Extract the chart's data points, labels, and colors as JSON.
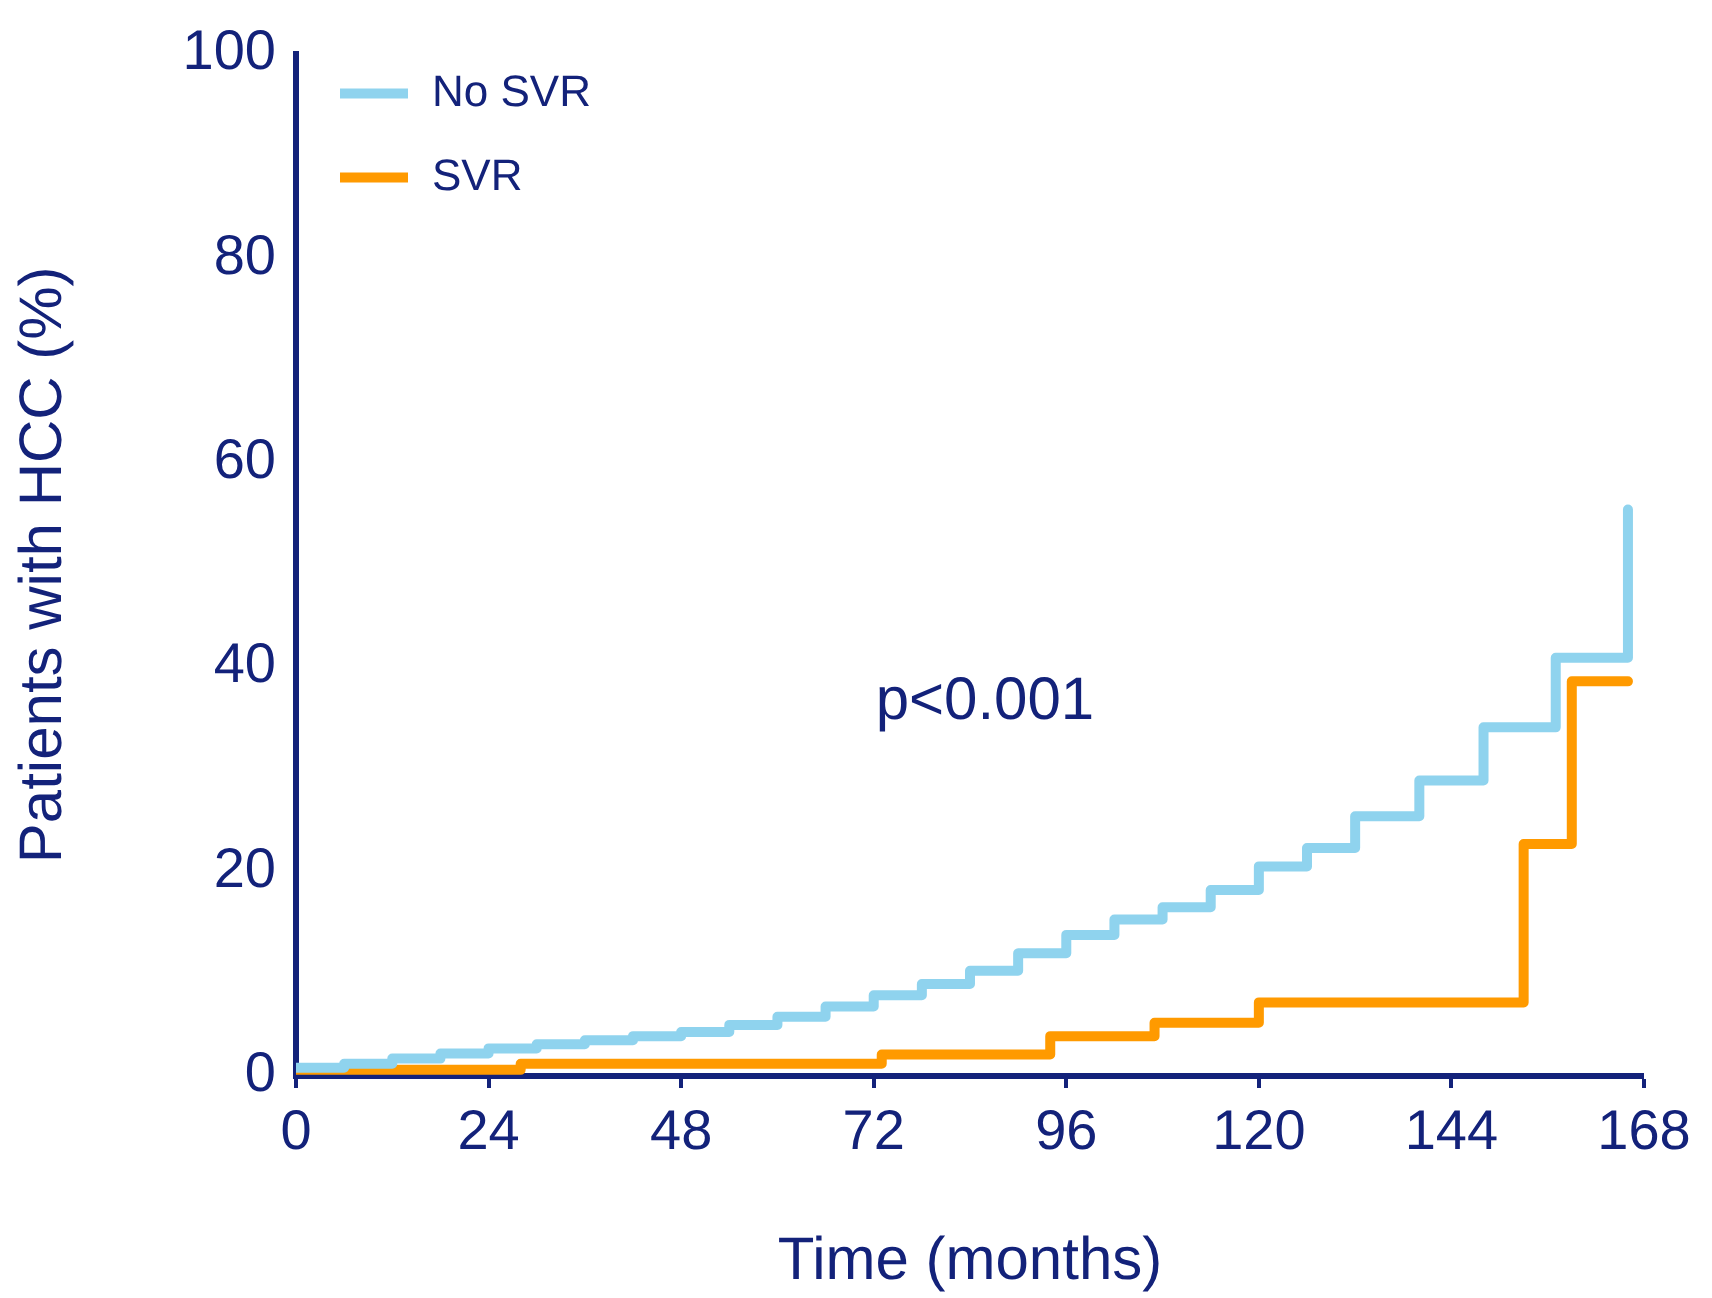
{
  "chart_data": {
    "type": "step",
    "xlabel": "Time (months)",
    "ylabel": "Patients with HCC (%)",
    "xlim": [
      0,
      168
    ],
    "xticks": [
      0,
      24,
      48,
      72,
      96,
      120,
      144,
      168
    ],
    "ylim": [
      0,
      100
    ],
    "yticks": [
      0,
      20,
      40,
      60,
      80,
      100
    ],
    "grid": false,
    "legend": "top left",
    "marker": "none",
    "line_style": "solid",
    "annotations": [
      "p<0.001"
    ],
    "series": [
      {
        "name": "No SVR",
        "color": "#8fd3ee",
        "x": [
          0,
          6,
          12,
          18,
          24,
          30,
          36,
          42,
          48,
          54,
          60,
          66,
          72,
          78,
          84,
          90,
          96,
          102,
          108,
          114,
          120,
          126,
          132,
          136,
          140,
          148,
          157,
          166
        ],
        "values": [
          0.8,
          1.2,
          1.7,
          2.2,
          2.7,
          3.1,
          3.5,
          3.9,
          4.3,
          5.0,
          5.8,
          6.8,
          7.9,
          9.0,
          10.3,
          12.0,
          13.8,
          15.3,
          16.5,
          18.2,
          20.5,
          22.3,
          25.4,
          25.4,
          28.9,
          34.1,
          40.9,
          55.4
        ]
      },
      {
        "name": "SVR",
        "color": "#ff9a00",
        "x": [
          0,
          28,
          73,
          94,
          107,
          120,
          153,
          159,
          166
        ],
        "values": [
          0.6,
          1.2,
          2.1,
          3.9,
          5.2,
          7.2,
          22.7,
          38.6,
          38.6
        ]
      }
    ]
  }
}
